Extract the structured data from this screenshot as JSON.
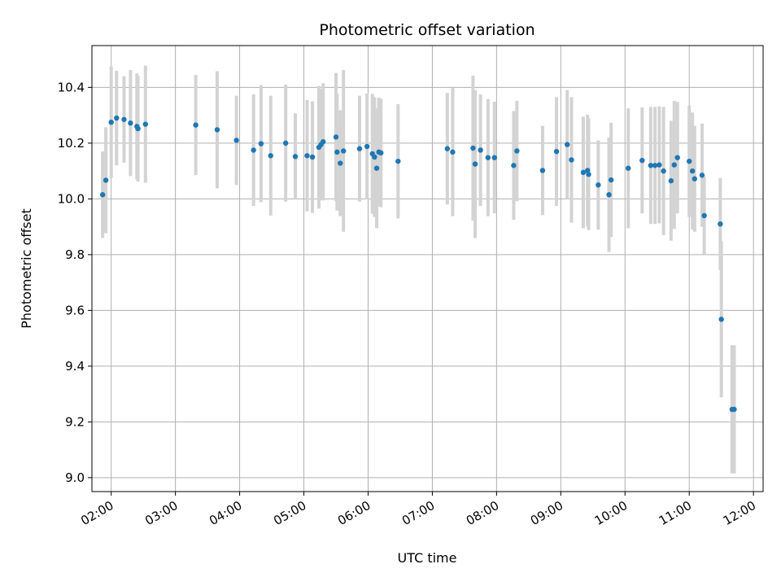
{
  "chart_data": {
    "type": "scatter",
    "title": "Photometric offset variation",
    "xlabel": "UTC time",
    "ylabel": "Photometric offset",
    "x_ticks": [
      "02:00",
      "03:00",
      "04:00",
      "05:00",
      "06:00",
      "07:00",
      "08:00",
      "09:00",
      "10:00",
      "11:00",
      "12:00"
    ],
    "y_ticks": [
      "9.0",
      "9.2",
      "9.4",
      "9.6",
      "9.8",
      "10.0",
      "10.2",
      "10.4"
    ],
    "xlim": [
      "01:42",
      "12:09"
    ],
    "ylim": [
      8.95,
      10.55
    ],
    "grid": true,
    "colors": {
      "point": "#1f77b4",
      "errorbar": "#d3d3d3",
      "grid": "#b0b0b0"
    },
    "series": [
      {
        "x": [
          "01:52",
          "01:55",
          "02:00",
          "02:05",
          "02:12",
          "02:18",
          "02:24",
          "02:25",
          "02:32",
          "03:19",
          "03:39",
          "03:57",
          "04:13",
          "04:20",
          "04:29",
          "04:43",
          "04:52",
          "05:03",
          "05:08",
          "05:14",
          "05:16",
          "05:18",
          "05:30",
          "05:31",
          "05:34",
          "05:37",
          "05:52",
          "05:59",
          "06:04",
          "06:06",
          "06:08",
          "06:10",
          "06:12",
          "06:28",
          "07:14",
          "07:19",
          "07:38",
          "07:40",
          "07:45",
          "07:52",
          "07:58",
          "08:16",
          "08:19",
          "08:43",
          "08:56",
          "09:06",
          "09:10",
          "09:21",
          "09:25",
          "09:26",
          "09:35",
          "09:45",
          "09:47",
          "10:03",
          "10:16",
          "10:24",
          "10:28",
          "10:32",
          "10:36",
          "10:43",
          "10:46",
          "10:49",
          "11:00",
          "11:03",
          "11:05",
          "11:12",
          "11:14",
          "11:29",
          "11:30",
          "11:40",
          "11:42"
        ],
        "y": [
          10.015,
          10.067,
          10.275,
          10.29,
          10.285,
          10.272,
          10.26,
          10.252,
          10.268,
          10.265,
          10.248,
          10.21,
          10.175,
          10.198,
          10.155,
          10.2,
          10.152,
          10.155,
          10.15,
          10.185,
          10.195,
          10.205,
          10.222,
          10.168,
          10.128,
          10.172,
          10.18,
          10.188,
          10.162,
          10.15,
          10.11,
          10.168,
          10.165,
          10.135,
          10.18,
          10.168,
          10.182,
          10.125,
          10.175,
          10.148,
          10.148,
          10.12,
          10.172,
          10.102,
          10.17,
          10.195,
          10.14,
          10.095,
          10.102,
          10.088,
          10.05,
          10.015,
          10.068,
          10.11,
          10.138,
          10.12,
          10.12,
          10.122,
          10.1,
          10.065,
          10.122,
          10.148,
          10.135,
          10.1,
          10.072,
          10.085,
          9.94,
          9.91,
          9.568,
          9.245,
          9.245
        ],
        "yerr": [
          0.155,
          0.19,
          0.2,
          0.17,
          0.155,
          0.19,
          0.19,
          0.19,
          0.21,
          0.18,
          0.21,
          0.16,
          0.2,
          0.21,
          0.215,
          0.21,
          0.155,
          0.2,
          0.2,
          0.22,
          0.2,
          0.21,
          0.23,
          0.21,
          0.19,
          0.29,
          0.19,
          0.19,
          0.215,
          0.215,
          0.215,
          0.195,
          0.195,
          0.205,
          0.2,
          0.23,
          0.26,
          0.265,
          0.2,
          0.21,
          0.2,
          0.195,
          0.18,
          0.16,
          0.195,
          0.195,
          0.225,
          0.2,
          0.2,
          0.2,
          0.16,
          0.205,
          0.205,
          0.215,
          0.19,
          0.21,
          0.21,
          0.21,
          0.23,
          0.215,
          0.23,
          0.2,
          0.2,
          0.21,
          0.19,
          0.185,
          0.14,
          0.165,
          0.28,
          0.23,
          0.23
        ]
      }
    ]
  }
}
